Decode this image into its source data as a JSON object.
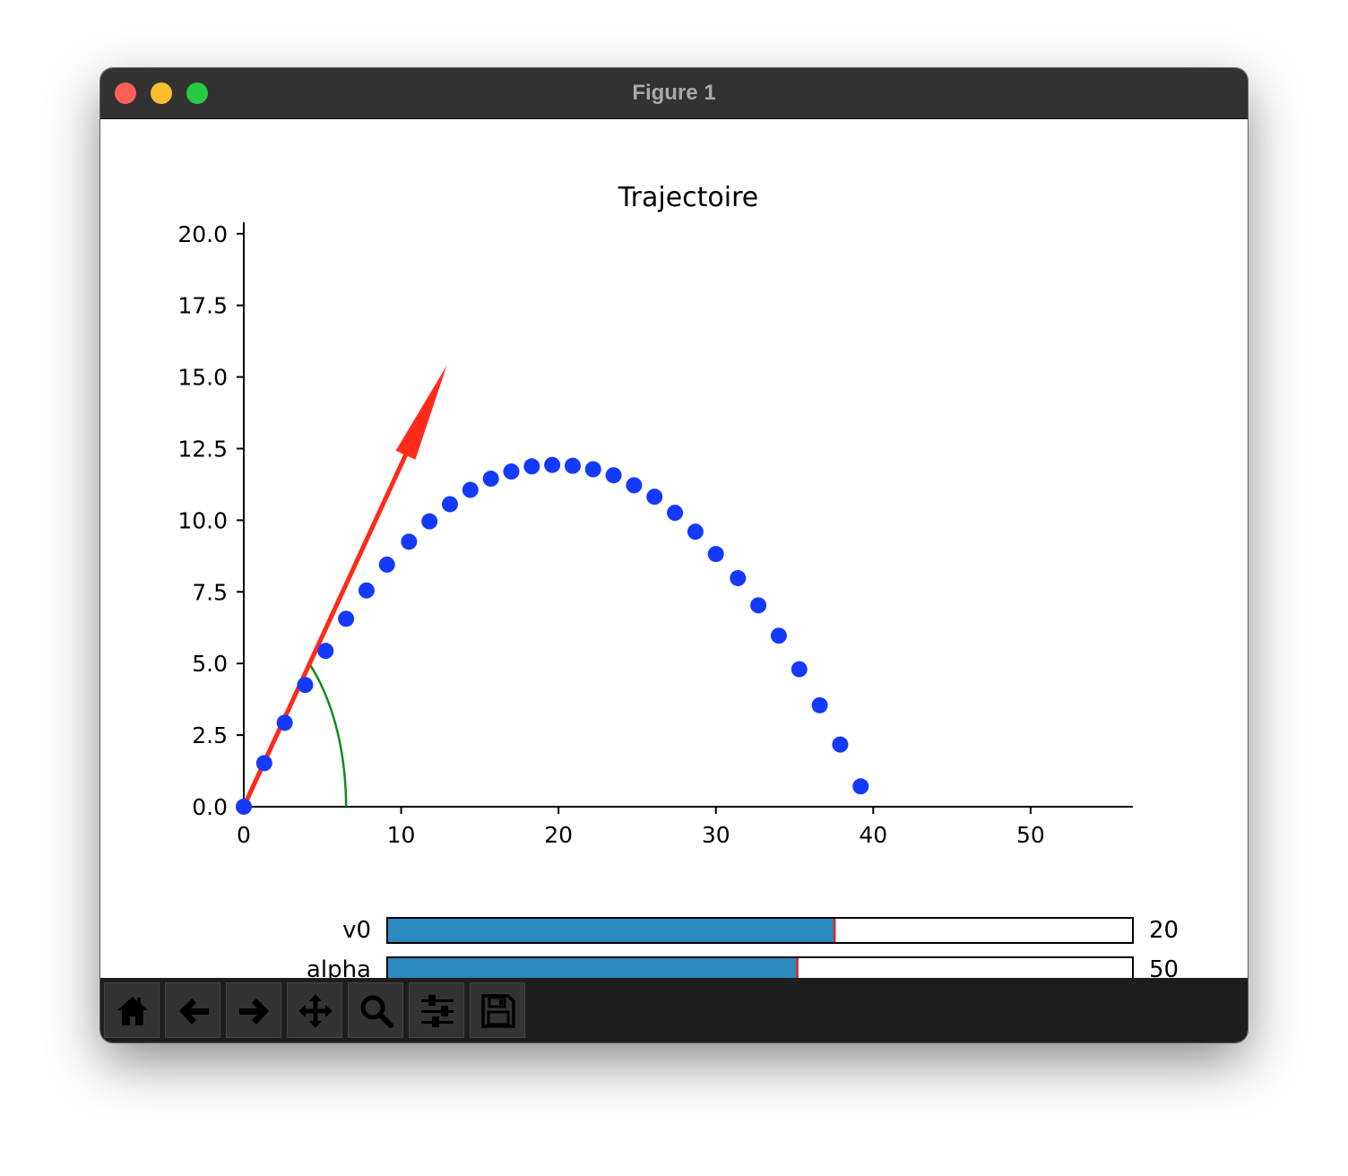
{
  "window": {
    "title": "Figure 1"
  },
  "colors": {
    "marker": "#1439ff",
    "arrow": "#ff2a1a",
    "arc": "#0a8c1e",
    "slider_fill": "#2b8ac0",
    "slider_marker": "#e0261c"
  },
  "chart_data": {
    "type": "scatter",
    "title": "Trajectoire",
    "xlabel": "",
    "ylabel": "",
    "xlim": [
      0,
      56.5
    ],
    "ylim": [
      0,
      20.4
    ],
    "xticks": [
      "0",
      "10",
      "20",
      "30",
      "40",
      "50"
    ],
    "yticks": [
      "0.0",
      "2.5",
      "5.0",
      "7.5",
      "10.0",
      "12.5",
      "15.0",
      "17.5",
      "20.0"
    ],
    "series": [
      {
        "x": [
          0,
          1.3,
          2.6,
          3.9,
          5.2,
          6.5,
          7.8,
          9.1,
          10.5,
          11.8,
          13.1,
          14.4,
          15.7,
          17.0,
          18.3,
          19.6,
          20.9,
          22.2,
          23.5,
          24.8,
          26.1,
          27.4,
          28.7,
          30.0,
          31.4,
          32.7,
          34.0,
          35.3,
          36.6,
          37.9,
          39.2
        ],
        "y": [
          0,
          1.52,
          2.93,
          4.25,
          5.44,
          6.56,
          7.55,
          8.45,
          9.25,
          9.96,
          10.56,
          11.06,
          11.45,
          11.7,
          11.88,
          11.93,
          11.9,
          11.78,
          11.57,
          11.22,
          10.82,
          10.26,
          9.6,
          8.82,
          7.98,
          7.03,
          5.97,
          4.8,
          3.54,
          2.17,
          0.71
        ]
      }
    ],
    "arrow": {
      "x0": 0,
      "y0": 0,
      "x1": 12.9,
      "y1": 15.4
    },
    "arc": {
      "radius": 6.5,
      "angle_deg": 50
    },
    "legend": "none",
    "grid": false
  },
  "sliders": [
    {
      "label": "v0",
      "value_text": "20",
      "fraction": 0.6
    },
    {
      "label": "alpha",
      "value_text": "50",
      "fraction": 0.55
    }
  ],
  "toolbar": {
    "buttons": [
      "home-icon",
      "back-arrow-icon",
      "forward-arrow-icon",
      "pan-move-icon",
      "zoom-magnifier-icon",
      "configure-subplots-icon",
      "save-disk-icon"
    ]
  }
}
